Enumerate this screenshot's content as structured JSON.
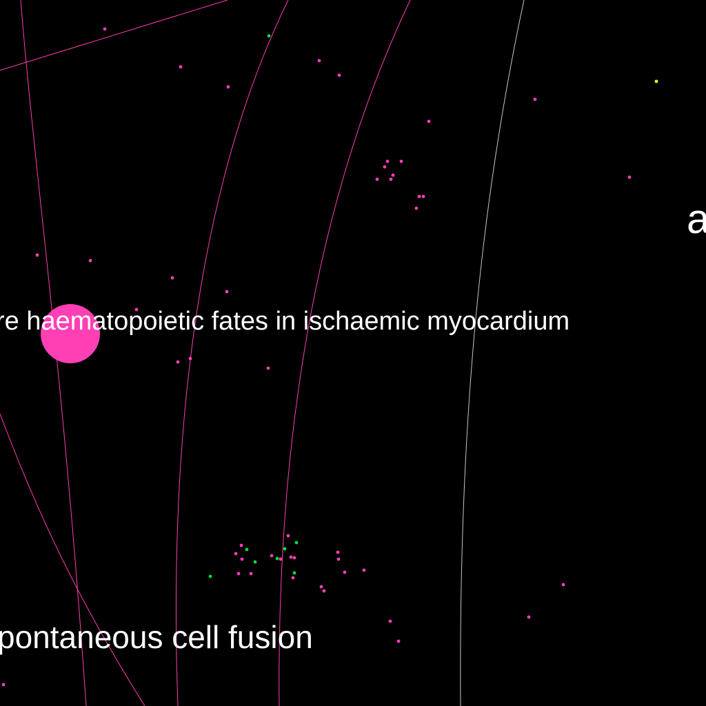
{
  "labels": {
    "haematopoietic": "re haematopoietic fates in ischaemic myocardium",
    "cell_fusion": "pontaneous cell fusion",
    "edge_fragment": "a"
  },
  "colors": {
    "background": "#000000",
    "primary_node": "#ff3fb4",
    "edge_pink": "#ff3fb4",
    "secondary_node": "#00e040",
    "highlight_node": "#ffff00",
    "edge_neutral": "#c8c8c8",
    "label_text": "#ffffff"
  }
}
